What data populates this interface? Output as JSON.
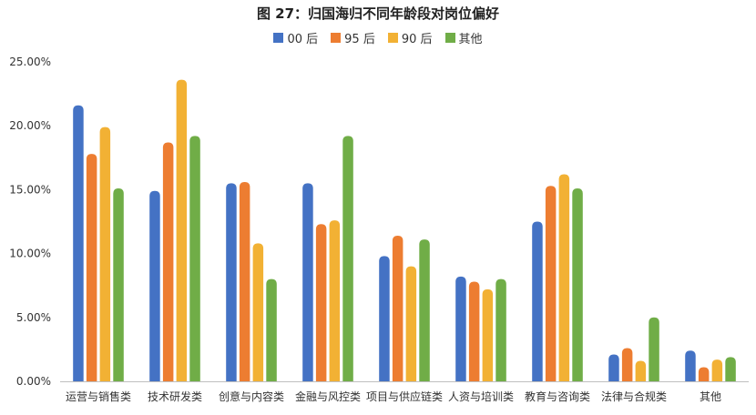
{
  "chart_data": {
    "type": "bar",
    "title": "图 27：归国海归不同年龄段对岗位偏好",
    "categories": [
      "运营与销售类",
      "技术研发类",
      "创意与内容类",
      "金融与风控类",
      "项目与供应链类",
      "人资与培训类",
      "教育与咨询类",
      "法律与合规类",
      "其他"
    ],
    "series": [
      {
        "name": "00 后",
        "color": "#4472C4",
        "values": [
          21.6,
          14.9,
          15.5,
          15.5,
          9.8,
          8.2,
          12.5,
          2.1,
          2.4
        ]
      },
      {
        "name": "95 后",
        "color": "#ED7D31",
        "values": [
          17.8,
          18.7,
          15.6,
          12.3,
          11.4,
          7.8,
          15.3,
          2.6,
          1.1
        ]
      },
      {
        "name": "90 后",
        "color": "#F2B134",
        "values": [
          19.9,
          23.6,
          10.8,
          12.6,
          9.0,
          7.2,
          16.2,
          1.6,
          1.7
        ]
      },
      {
        "name": "其他",
        "color": "#70AD47",
        "values": [
          15.1,
          19.2,
          8.0,
          19.2,
          11.1,
          8.0,
          15.1,
          5.0,
          1.9
        ]
      }
    ],
    "y_ticks": [
      "0.00%",
      "5.00%",
      "10.00%",
      "15.00%",
      "20.00%",
      "25.00%"
    ],
    "ylim": [
      0,
      25
    ],
    "legend_position": "top",
    "grid": false
  }
}
